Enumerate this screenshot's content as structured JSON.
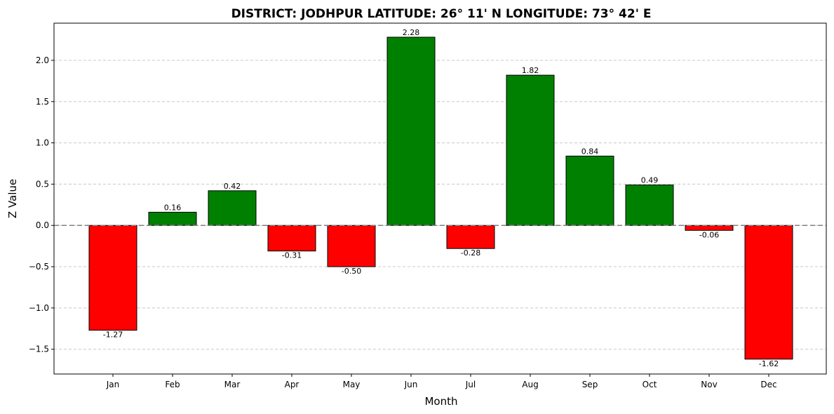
{
  "chart_data": {
    "type": "bar",
    "title": "DISTRICT: JODHPUR     LATITUDE: 26° 11' N     LONGITUDE: 73° 42' E",
    "xlabel": "Month",
    "ylabel": "Z Value",
    "categories": [
      "Jan",
      "Feb",
      "Mar",
      "Apr",
      "May",
      "Jun",
      "Jul",
      "Aug",
      "Sep",
      "Oct",
      "Nov",
      "Dec"
    ],
    "values": [
      -1.27,
      0.16,
      0.42,
      -0.31,
      -0.5,
      2.28,
      -0.28,
      1.82,
      0.84,
      0.49,
      -0.06,
      -1.62
    ],
    "value_labels": [
      "-1.27",
      "0.16",
      "0.42",
      "-0.31",
      "-0.50",
      "2.28",
      "-0.28",
      "1.82",
      "0.84",
      "0.49",
      "-0.06",
      "-1.62"
    ],
    "ylim": [
      -1.8,
      2.45
    ],
    "yticks": [
      -1.5,
      -1.0,
      -0.5,
      0.0,
      0.5,
      1.0,
      1.5,
      2.0
    ],
    "ytick_labels": [
      "−1.5",
      "−1.0",
      "−0.5",
      "0.0",
      "0.5",
      "1.0",
      "1.5",
      "2.0"
    ],
    "grid": "y-dashed",
    "zero_line": "dashed",
    "colors": {
      "positive": "#008000",
      "negative": "#ff0000",
      "edge": "#000000",
      "grid": "#c8c8c8",
      "zero_line": "#808080"
    }
  }
}
